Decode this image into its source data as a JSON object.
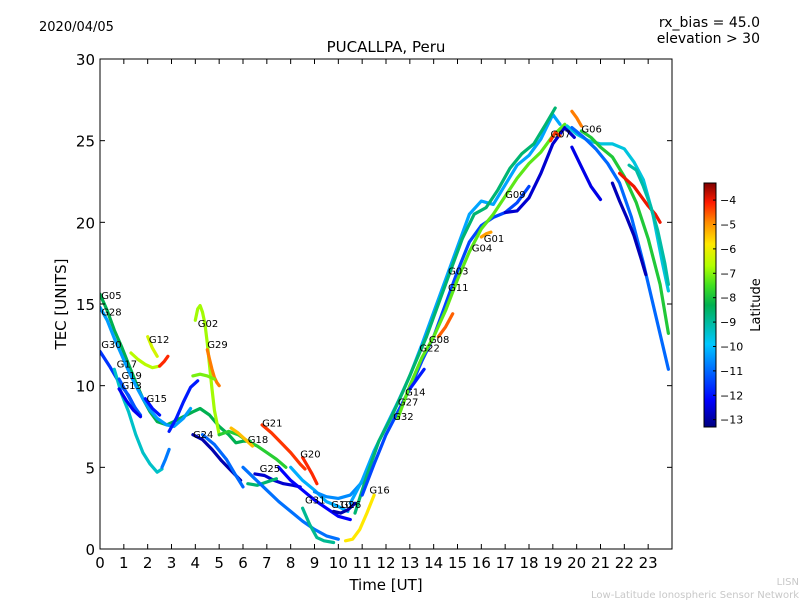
{
  "chart_data": {
    "type": "line",
    "title": "PUCALLPA, Peru",
    "date": "2020/04/05",
    "info_lines": [
      "rx_bias = 45.0",
      "elevation > 30"
    ],
    "xlabel": "Time [UT]",
    "ylabel": "TEC [UNITS]",
    "xlim": [
      0,
      24
    ],
    "ylim": [
      0,
      30
    ],
    "xticks": [
      0,
      1,
      2,
      3,
      4,
      5,
      6,
      7,
      8,
      9,
      10,
      11,
      12,
      13,
      14,
      15,
      16,
      17,
      18,
      19,
      20,
      21,
      22,
      23
    ],
    "yticks": [
      0,
      5,
      10,
      15,
      20,
      25,
      30
    ],
    "grid": false,
    "colorbar": {
      "label": "Latitude",
      "range": [
        -13.3,
        -3.3
      ],
      "ticks": [
        -4,
        -5,
        -6,
        -7,
        -8,
        -9,
        -10,
        -11,
        -12,
        -13
      ]
    },
    "satellite_labels": [
      {
        "name": "G05",
        "x": 0.05,
        "y": 15.3
      },
      {
        "name": "G28",
        "x": 0.05,
        "y": 14.3
      },
      {
        "name": "G12",
        "x": 2.05,
        "y": 12.6
      },
      {
        "name": "G02",
        "x": 4.1,
        "y": 13.6
      },
      {
        "name": "G29",
        "x": 4.5,
        "y": 12.3
      },
      {
        "name": "G30",
        "x": 0.05,
        "y": 12.3
      },
      {
        "name": "G17",
        "x": 0.7,
        "y": 11.1
      },
      {
        "name": "G19",
        "x": 0.9,
        "y": 10.4
      },
      {
        "name": "G13",
        "x": 0.9,
        "y": 9.8
      },
      {
        "name": "G15",
        "x": 1.95,
        "y": 9.0
      },
      {
        "name": "G24",
        "x": 3.9,
        "y": 6.8
      },
      {
        "name": "G18",
        "x": 6.2,
        "y": 6.5
      },
      {
        "name": "G21",
        "x": 6.8,
        "y": 7.5
      },
      {
        "name": "G25",
        "x": 6.7,
        "y": 4.7
      },
      {
        "name": "G20",
        "x": 8.4,
        "y": 5.6
      },
      {
        "name": "G31",
        "x": 8.6,
        "y": 2.8
      },
      {
        "name": "G10",
        "x": 9.7,
        "y": 2.5
      },
      {
        "name": "G26",
        "x": 10.1,
        "y": 2.5
      },
      {
        "name": "G16",
        "x": 11.3,
        "y": 3.4
      },
      {
        "name": "G32",
        "x": 12.3,
        "y": 7.9
      },
      {
        "name": "G27",
        "x": 12.5,
        "y": 8.8
      },
      {
        "name": "G14",
        "x": 12.8,
        "y": 9.4
      },
      {
        "name": "G22",
        "x": 13.4,
        "y": 12.1
      },
      {
        "name": "G08",
        "x": 13.8,
        "y": 12.6
      },
      {
        "name": "G03",
        "x": 14.6,
        "y": 16.8
      },
      {
        "name": "G11",
        "x": 14.6,
        "y": 15.8
      },
      {
        "name": "G04",
        "x": 15.6,
        "y": 18.2
      },
      {
        "name": "G01",
        "x": 16.1,
        "y": 18.8
      },
      {
        "name": "G09",
        "x": 17.0,
        "y": 21.5
      },
      {
        "name": "G07",
        "x": 18.9,
        "y": 25.2
      },
      {
        "name": "G06",
        "x": 20.2,
        "y": 25.5
      }
    ],
    "series": [
      {
        "name": "G05",
        "lat": -8.3,
        "x": [
          0,
          0.3,
          0.6,
          0.9,
          1.2,
          1.5,
          1.8,
          2.1,
          2.4,
          2.8,
          3.1,
          3.5,
          3.9,
          4.2,
          4.6,
          5.0,
          5.4,
          5.7,
          6.0,
          6.3
        ],
        "y": [
          15.6,
          14.6,
          13.4,
          12.4,
          11.3,
          10.2,
          9.2,
          8.4,
          7.8,
          7.6,
          7.8,
          8.1,
          8.4,
          8.6,
          8.2,
          7.5,
          7.0,
          6.5,
          6.6,
          6.6
        ]
      },
      {
        "name": "G28",
        "lat": -10.4,
        "x": [
          0,
          0.3,
          0.6,
          0.9,
          1.2,
          1.5,
          1.8,
          2.1,
          2.4,
          2.8,
          3.1,
          3.5,
          3.8
        ],
        "y": [
          14.8,
          14.0,
          12.9,
          11.9,
          10.9,
          10.0,
          9.2,
          8.5,
          8.0,
          7.6,
          7.5,
          8.0,
          8.6
        ]
      },
      {
        "name": "G30",
        "lat": -11.6,
        "x": [
          0,
          0.4,
          0.8,
          1.2,
          1.6
        ],
        "y": [
          12.1,
          11.2,
          10.2,
          9.4,
          8.3
        ]
      },
      {
        "name": "G17",
        "lat": -9.4,
        "x": [
          0.6,
          0.9,
          1.2,
          1.5,
          1.8,
          2.1,
          2.4,
          2.6
        ],
        "y": [
          11.0,
          9.5,
          8.4,
          7.0,
          5.9,
          5.2,
          4.7,
          4.9
        ]
      },
      {
        "name": "G19",
        "lat": -11.2,
        "x": [
          0.8,
          1.1,
          1.4,
          1.7
        ],
        "y": [
          10.4,
          9.6,
          8.8,
          8.2
        ]
      },
      {
        "name": "G13",
        "lat": -12.3,
        "x": [
          0.8,
          1.1,
          1.4,
          1.7
        ],
        "y": [
          9.8,
          9.1,
          8.5,
          8.1
        ]
      },
      {
        "name": "G12",
        "lat": -6.6,
        "x": [
          1.3,
          1.6,
          1.9,
          2.2,
          2.5
        ],
        "y": [
          12.0,
          11.6,
          11.3,
          11.1,
          11.2
        ]
      },
      {
        "name": "G12b",
        "lat": -6.3,
        "x": [
          2.0,
          2.2,
          2.4
        ],
        "y": [
          13.0,
          12.3,
          11.8
        ]
      },
      {
        "name": "G12c",
        "lat": -4.2,
        "x": [
          2.5,
          2.7,
          2.85
        ],
        "y": [
          11.2,
          11.5,
          11.8
        ]
      },
      {
        "name": "G15",
        "lat": -12.0,
        "x": [
          1.9,
          2.2,
          2.5
        ],
        "y": [
          9.2,
          8.6,
          8.2
        ]
      },
      {
        "name": "G15b",
        "lat": -10.8,
        "x": [
          2.6,
          2.75,
          2.9
        ],
        "y": [
          5.0,
          5.5,
          6.1
        ]
      },
      {
        "name": "G02",
        "lat": -6.8,
        "x": [
          4.0,
          4.1,
          4.2,
          4.3,
          4.4,
          4.5,
          4.6,
          4.7,
          4.8,
          5.0
        ],
        "y": [
          14.0,
          14.7,
          14.9,
          14.5,
          13.8,
          12.6,
          11.2,
          9.8,
          8.5,
          7.0
        ]
      },
      {
        "name": "G29",
        "lat": -4.8,
        "x": [
          4.5,
          4.6,
          4.7,
          4.8,
          4.9,
          5.0
        ],
        "y": [
          12.2,
          11.6,
          11.0,
          10.5,
          10.2,
          10.0
        ]
      },
      {
        "name": "G29b",
        "lat": -7.1,
        "x": [
          3.9,
          4.2,
          4.5,
          4.8
        ],
        "y": [
          10.6,
          10.7,
          10.6,
          10.4
        ]
      },
      {
        "name": "G24a",
        "lat": -11.9,
        "x": [
          2.9,
          3.2,
          3.5,
          3.8,
          4.1
        ],
        "y": [
          7.2,
          8.0,
          9.0,
          9.9,
          10.3
        ]
      },
      {
        "name": "G24",
        "lat": -12.9,
        "x": [
          3.9,
          4.3,
          4.7,
          5.1,
          5.5,
          5.9
        ],
        "y": [
          7.0,
          6.7,
          6.1,
          5.4,
          4.8,
          4.2
        ]
      },
      {
        "name": "G24b",
        "lat": -11.0,
        "x": [
          4.3,
          4.8,
          5.3,
          5.7,
          6.0
        ],
        "y": [
          7.0,
          6.4,
          5.5,
          4.5,
          3.8
        ]
      },
      {
        "name": "G18",
        "lat": -7.8,
        "x": [
          5.0,
          5.4,
          5.8,
          6.2,
          6.6,
          7.0,
          7.4,
          7.8
        ],
        "y": [
          7.0,
          7.2,
          7.0,
          6.6,
          6.3,
          5.9,
          5.5,
          5.0
        ]
      },
      {
        "name": "G18b",
        "lat": -5.4,
        "x": [
          5.5,
          5.8,
          6.1,
          6.4
        ],
        "y": [
          7.4,
          7.1,
          6.7,
          6.3
        ]
      },
      {
        "name": "G21",
        "lat": -4.3,
        "x": [
          6.8,
          7.2,
          7.6,
          8.0,
          8.4,
          8.6
        ],
        "y": [
          7.6,
          7.1,
          6.5,
          5.9,
          5.2,
          4.9
        ]
      },
      {
        "name": "G25",
        "lat": -12.6,
        "x": [
          6.5,
          6.9,
          7.3,
          7.7,
          8.1,
          8.4
        ],
        "y": [
          4.6,
          4.5,
          4.2,
          4.0,
          3.9,
          3.8
        ]
      },
      {
        "name": "G25b",
        "lat": -8.6,
        "x": [
          6.2,
          6.6,
          7.0,
          7.4
        ],
        "y": [
          4.0,
          3.9,
          4.1,
          4.3
        ]
      },
      {
        "name": "G20",
        "lat": -4.2,
        "x": [
          8.5,
          8.7,
          8.9,
          9.1
        ],
        "y": [
          5.6,
          5.1,
          4.6,
          4.0
        ]
      },
      {
        "name": "G31",
        "lat": -10.9,
        "x": [
          6.0,
          6.5,
          7.0,
          7.5,
          8.0,
          8.5,
          9.0,
          9.5,
          10.0
        ],
        "y": [
          5.0,
          4.3,
          3.6,
          2.9,
          2.3,
          1.7,
          1.2,
          0.8,
          0.6
        ]
      },
      {
        "name": "G31b",
        "lat": -8.9,
        "x": [
          8.5,
          8.8,
          9.1,
          9.4,
          9.8
        ],
        "y": [
          2.5,
          1.5,
          0.7,
          0.5,
          0.4
        ]
      },
      {
        "name": "G10",
        "lat": -12.2,
        "x": [
          7.5,
          8.0,
          8.5,
          9.0,
          9.5,
          10.0,
          10.5
        ],
        "y": [
          5.0,
          4.2,
          3.6,
          3.0,
          2.5,
          2.0,
          1.8
        ]
      },
      {
        "name": "G10b",
        "lat": -10.2,
        "x": [
          8.0,
          8.5,
          9.0,
          9.5,
          10.0,
          10.4
        ],
        "y": [
          5.0,
          4.2,
          3.6,
          2.9,
          2.6,
          2.3
        ]
      },
      {
        "name": "G26",
        "lat": -12.9,
        "x": [
          9.8,
          10.1,
          10.4,
          10.7
        ],
        "y": [
          2.3,
          2.2,
          2.4,
          2.8
        ]
      },
      {
        "name": "G16",
        "lat": -5.8,
        "x": [
          10.3,
          10.6,
          10.9,
          11.2,
          11.5
        ],
        "y": [
          0.5,
          0.6,
          1.2,
          2.2,
          3.3
        ]
      },
      {
        "name": "G16b",
        "lat": -10.6,
        "x": [
          9.0,
          9.5,
          10.0,
          10.5,
          11.0
        ],
        "y": [
          3.5,
          3.2,
          3.1,
          3.3,
          4.1
        ]
      },
      {
        "name": "Main1",
        "lat": -10.3,
        "x": [
          10.5,
          11.0,
          11.5,
          12.0,
          12.5,
          13.0,
          13.5,
          14.0,
          14.5,
          15.0,
          15.5,
          16.0,
          16.5,
          17.0,
          17.5,
          18.0,
          18.5,
          19.0,
          19.3
        ],
        "y": [
          2.8,
          4.2,
          6.0,
          7.5,
          9.0,
          10.6,
          12.5,
          14.5,
          16.5,
          18.5,
          20.5,
          21.3,
          21.1,
          22.3,
          23.5,
          24.1,
          25.1,
          26.6,
          26.0
        ]
      },
      {
        "name": "Main2",
        "lat": -8.6,
        "x": [
          10.7,
          11.2,
          11.7,
          12.2,
          12.7,
          13.2,
          13.7,
          14.2,
          14.7,
          15.2,
          15.7,
          16.2,
          16.7,
          17.2,
          17.7,
          18.2,
          18.7,
          19.1
        ],
        "y": [
          2.2,
          4.5,
          6.6,
          8.0,
          9.6,
          11.3,
          13.0,
          15.0,
          17.0,
          19.0,
          20.5,
          20.9,
          22.0,
          23.3,
          24.2,
          24.8,
          26.0,
          27.0
        ]
      },
      {
        "name": "Main3",
        "lat": -11.4,
        "x": [
          11.0,
          11.5,
          12.0,
          12.5,
          13.0,
          13.5,
          14.0,
          14.5,
          15.0,
          15.5,
          16.0,
          16.5,
          17.0,
          17.5,
          18.0
        ],
        "y": [
          3.3,
          5.2,
          7.0,
          8.4,
          9.8,
          11.5,
          13.0,
          15.0,
          17.0,
          18.8,
          19.8,
          20.3,
          20.6,
          21.2,
          22.2
        ]
      },
      {
        "name": "Main4",
        "lat": -7.3,
        "x": [
          12.5,
          13.0,
          13.5,
          14.0,
          14.5,
          15.0,
          15.5,
          16.0,
          16.5,
          17.0,
          17.5,
          18.0,
          18.5,
          19.0,
          19.5
        ],
        "y": [
          8.0,
          10.0,
          11.7,
          13.0,
          14.6,
          16.5,
          18.2,
          19.6,
          20.5,
          21.6,
          22.7,
          23.6,
          24.3,
          25.3,
          26.0
        ]
      },
      {
        "name": "G09",
        "lat": -12.6,
        "x": [
          17.0,
          17.5,
          18.0,
          18.5,
          19.0,
          19.5,
          19.9
        ],
        "y": [
          20.6,
          20.7,
          21.5,
          23.0,
          24.8,
          25.8,
          25.2
        ]
      },
      {
        "name": "G22",
        "lat": -11.9,
        "x": [
          13.0,
          13.3,
          13.6
        ],
        "y": [
          9.8,
          10.4,
          11.0
        ]
      },
      {
        "name": "G08",
        "lat": -4.6,
        "x": [
          14.2,
          14.5,
          14.8
        ],
        "y": [
          13.0,
          13.6,
          14.4
        ]
      },
      {
        "name": "G07",
        "lat": -4.3,
        "x": [
          18.9,
          19.1,
          19.3
        ],
        "y": [
          25.0,
          25.5,
          25.3
        ]
      },
      {
        "name": "G06",
        "lat": -9.6,
        "x": [
          19.6,
          20.0,
          20.5,
          21.0,
          21.5,
          22.0,
          22.4,
          22.8,
          23.2,
          23.6,
          23.85
        ],
        "y": [
          25.9,
          25.4,
          25.0,
          24.8,
          24.8,
          24.5,
          23.7,
          22.6,
          20.5,
          17.5,
          15.8
        ]
      },
      {
        "name": "G06b",
        "lat": -11.0,
        "x": [
          19.8,
          20.3,
          20.8,
          21.3,
          21.8,
          22.3,
          22.8,
          23.3,
          23.85
        ],
        "y": [
          25.8,
          25.2,
          24.5,
          23.6,
          22.4,
          20.3,
          17.5,
          14.4,
          11.0
        ]
      },
      {
        "name": "G06c",
        "lat": -7.9,
        "x": [
          20.2,
          20.6,
          21.0,
          21.5,
          22.0,
          22.5,
          23.0,
          23.5,
          23.85
        ],
        "y": [
          25.6,
          25.2,
          24.6,
          24.0,
          22.8,
          21.2,
          19.0,
          16.2,
          13.2
        ]
      },
      {
        "name": "G06d",
        "lat": -12.4,
        "x": [
          19.8,
          20.2,
          20.6,
          21.0
        ],
        "y": [
          24.6,
          23.4,
          22.2,
          21.4
        ]
      },
      {
        "name": "G06e",
        "lat": -12.8,
        "x": [
          21.5,
          21.8,
          22.1,
          22.4,
          22.7,
          22.9
        ],
        "y": [
          22.4,
          21.3,
          20.3,
          19.2,
          17.8,
          16.8
        ]
      },
      {
        "name": "G06f",
        "lat": -4.0,
        "x": [
          21.8,
          22.1,
          22.4,
          22.7,
          23.0,
          23.3,
          23.5
        ],
        "y": [
          23.0,
          22.6,
          22.2,
          21.6,
          21.0,
          20.5,
          20.0
        ]
      },
      {
        "name": "G06g",
        "lat": -9.1,
        "x": [
          22.2,
          22.5,
          22.8,
          23.1,
          23.4,
          23.7,
          23.85
        ],
        "y": [
          23.5,
          23.2,
          22.2,
          21.0,
          19.5,
          17.5,
          16.2
        ]
      },
      {
        "name": "G06h",
        "lat": -4.8,
        "x": [
          19.8,
          20.0,
          20.2
        ],
        "y": [
          26.8,
          26.4,
          25.9
        ]
      },
      {
        "name": "G01",
        "lat": -5.1,
        "x": [
          16.0,
          16.2,
          16.4
        ],
        "y": [
          19.1,
          19.3,
          19.4
        ]
      }
    ]
  },
  "watermark": {
    "line1": "LISN",
    "line2": "Low-Latitude Ionospheric Sensor Network"
  }
}
